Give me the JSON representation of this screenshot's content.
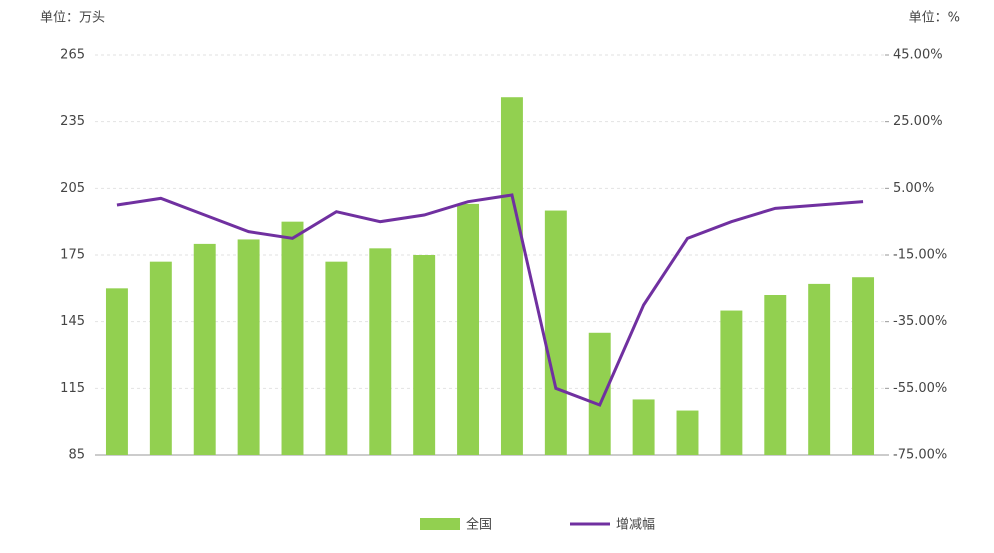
{
  "chart_data": {
    "type": "bar_line",
    "y_label": "单位：万头",
    "y2_label": "单位：%",
    "categories": [
      null,
      null,
      null,
      null,
      null,
      null,
      null,
      null,
      null,
      null,
      null,
      null,
      null,
      null,
      null,
      null,
      null,
      null
    ],
    "series": [
      {
        "name": "全国",
        "color": "#92d050",
        "type": "bar",
        "values": [
          160,
          172,
          180,
          182,
          190,
          172,
          178,
          175,
          198,
          246,
          195,
          140,
          110,
          105,
          150,
          157,
          162,
          165
        ]
      },
      {
        "name": "增减幅",
        "color": "#7030a0",
        "type": "line",
        "axis": "y2",
        "values": [
          0,
          2,
          -3,
          -8,
          -10,
          -2,
          -5,
          -3,
          1,
          3,
          -55,
          -60,
          -30,
          -10,
          -5,
          -1,
          0,
          1
        ]
      }
    ],
    "ylim": [
      85,
      265
    ],
    "yticks": [
      85,
      115,
      145,
      175,
      205,
      235,
      265
    ],
    "y2lim": [
      -75,
      45
    ],
    "y2ticks": [
      {
        "value": -75,
        "label": "-75.00%"
      },
      {
        "value": -55,
        "label": "-55.00%"
      },
      {
        "value": -35,
        "label": "-35.00%"
      },
      {
        "value": -15,
        "label": "-15.00%"
      },
      {
        "value": 5,
        "label": "5.00%"
      },
      {
        "value": 25,
        "label": "25.00%"
      },
      {
        "value": 45,
        "label": "45.00%"
      }
    ],
    "grid": true
  }
}
